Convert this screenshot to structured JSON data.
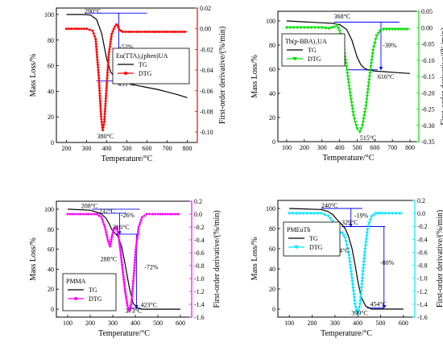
{
  "chart_data": [
    {
      "type": "line",
      "legend": [
        {
          "name": "TG",
          "color": "#000000",
          "marker": "none"
        },
        {
          "name": "DTG",
          "color": "#ff0000",
          "marker": "dot"
        }
      ],
      "legend_title": "Eu(TTA)₃(phen)UA",
      "xlabel": "Temperature/°C",
      "ylabel_left": "Mass Loss/%",
      "ylabel_right": "First-order derivative/(%/min)",
      "xlim": [
        150,
        850
      ],
      "ylim_left": [
        0,
        105
      ],
      "ylim_right": [
        -0.11,
        0.02
      ],
      "xticks": [
        "200",
        "300",
        "400",
        "500",
        "600",
        "700",
        "800"
      ],
      "yticks_left": [
        "0",
        "20",
        "40",
        "60",
        "80",
        "100"
      ],
      "yticks_right": [
        "0.02",
        "0.00",
        "-0.02",
        "-0.04",
        "-0.06",
        "-0.08",
        "-0.10"
      ],
      "tg": {
        "x": [
          200,
          280,
          320,
          350,
          375,
          400,
          420,
          440,
          460,
          500,
          550,
          600,
          650,
          700,
          750,
          800
        ],
        "y": [
          100,
          100,
          99.5,
          96,
          85,
          65,
          55,
          51,
          49,
          46.5,
          44.5,
          43,
          41.5,
          39.5,
          37.5,
          35
        ]
      },
      "dtg": {
        "x": [
          200,
          300,
          330,
          345,
          360,
          372,
          380,
          388,
          398,
          410,
          425,
          440,
          448,
          455,
          462,
          480,
          520,
          560,
          600,
          650,
          700,
          750,
          800
        ],
        "y": [
          0,
          0,
          -0.002,
          -0.01,
          -0.045,
          -0.085,
          -0.098,
          -0.09,
          -0.06,
          -0.025,
          -0.005,
          0.002,
          0.004,
          0.003,
          -0.001,
          -0.003,
          -0.003,
          -0.003,
          -0.003,
          -0.003,
          -0.003,
          -0.003,
          -0.003
        ]
      },
      "annotations": [
        {
          "text": "290°C",
          "x": 290,
          "y": 101,
          "axis": "left"
        },
        {
          "text": "-52%",
          "x": 463,
          "y": 73,
          "axis": "left"
        },
        {
          "text": "455°C",
          "x": 455,
          "y": 44,
          "axis": "left"
        },
        {
          "text": "380°C",
          "x": 352,
          "y": -0.106,
          "axis": "right"
        }
      ],
      "guides": [
        {
          "x1": 290,
          "y1": 101,
          "x2": 600,
          "y2": 101,
          "axis": "left"
        },
        {
          "x1": 348,
          "y1": 48,
          "x2": 520,
          "y2": 48,
          "axis": "left"
        },
        {
          "x1": 460,
          "y1": 101,
          "x2": 460,
          "y2": 48,
          "axis": "left",
          "arrow": true
        }
      ]
    },
    {
      "type": "line",
      "legend": [
        {
          "name": "TG",
          "color": "#000000",
          "marker": "none"
        },
        {
          "name": "DTG",
          "color": "#00e000",
          "marker": "triangle-down"
        }
      ],
      "legend_title": "Tb(p-BBA)₃UA",
      "xlabel": "Temperature/°C",
      "ylabel_left": "Mass Loss/%",
      "ylabel_right": "First-order derivative/(%/min)",
      "xlim": [
        50,
        850
      ],
      "ylim_left": [
        0,
        108
      ],
      "ylim_right": [
        -0.35,
        0.05
      ],
      "xticks": [
        "100",
        "200",
        "300",
        "400",
        "500",
        "600",
        "700",
        "800"
      ],
      "yticks_left": [
        "0",
        "20",
        "40",
        "60",
        "80",
        "100"
      ],
      "yticks_right": [
        "0.05",
        "0.00",
        "-0.05",
        "-0.10",
        "-0.15",
        "-0.20",
        "-0.25",
        "-0.30",
        "-0.35"
      ],
      "tg": {
        "x": [
          100,
          300,
          360,
          400,
          440,
          470,
          500,
          520,
          540,
          560,
          600,
          650,
          700,
          800
        ],
        "y": [
          100,
          98.5,
          98,
          97,
          93,
          84,
          70,
          64,
          61,
          59.5,
          58.5,
          58,
          57.5,
          56.5
        ]
      },
      "dtg": {
        "x": [
          100,
          300,
          340,
          370,
          385,
          400,
          420,
          440,
          460,
          480,
          500,
          515,
          530,
          550,
          570,
          590,
          610,
          630,
          650,
          700,
          750,
          800
        ],
        "y": [
          0,
          0,
          -0.003,
          0.002,
          0.008,
          -0.01,
          -0.05,
          -0.12,
          -0.2,
          -0.27,
          -0.31,
          -0.32,
          -0.3,
          -0.24,
          -0.15,
          -0.07,
          -0.025,
          -0.01,
          -0.005,
          -0.005,
          -0.005,
          -0.005
        ]
      },
      "annotations": [
        {
          "text": "368°C",
          "x": 368,
          "y": 102,
          "axis": "left"
        },
        {
          "text": "-39%",
          "x": 645,
          "y": 78,
          "axis": "left"
        },
        {
          "text": "616°C",
          "x": 616,
          "y": 52,
          "axis": "left"
        },
        {
          "text": "515°C",
          "x": 515,
          "y": -0.345,
          "axis": "right"
        }
      ],
      "guides": [
        {
          "x1": 368,
          "y1": 99,
          "x2": 740,
          "y2": 99,
          "axis": "left"
        },
        {
          "x1": 450,
          "y1": 59.5,
          "x2": 616,
          "y2": 59.5,
          "axis": "left"
        },
        {
          "x1": 635,
          "y1": 99,
          "x2": 635,
          "y2": 59.5,
          "axis": "left",
          "arrow": true
        }
      ]
    },
    {
      "type": "line",
      "legend": [
        {
          "name": "TG",
          "color": "#000000",
          "marker": "none"
        },
        {
          "name": "DTG",
          "color": "#ff00ff",
          "marker": "dot"
        }
      ],
      "legend_title": "PMMA",
      "xlabel": "Temperature/°C",
      "ylabel_left": "Mass Loss/%",
      "ylabel_right": "First-order derivative/(%/min)",
      "xlim": [
        50,
        650
      ],
      "ylim_left": [
        -8,
        108
      ],
      "ylim_right": [
        -1.6,
        0.2
      ],
      "xticks": [
        "100",
        "200",
        "300",
        "400",
        "500",
        "600"
      ],
      "yticks_left": [
        "0",
        "20",
        "40",
        "60",
        "80",
        "100"
      ],
      "yticks_right": [
        "0.2",
        "0.0",
        "-0.2",
        "-0.4",
        "-0.6",
        "-0.8",
        "-1.0",
        "-1.2",
        "-1.4",
        "-1.6"
      ],
      "tg": {
        "x": [
          100,
          200,
          230,
          250,
          270,
          285,
          295,
          305,
          315,
          325,
          340,
          355,
          365,
          375,
          390,
          410,
          430,
          600
        ],
        "y": [
          100,
          99,
          97,
          95,
          91,
          85,
          80,
          77,
          75,
          72,
          62,
          45,
          32,
          20,
          6,
          1,
          0,
          0
        ]
      },
      "dtg": {
        "x": [
          100,
          230,
          250,
          265,
          278,
          288,
          298,
          306,
          316,
          325,
          335,
          345,
          355,
          365,
          373,
          382,
          392,
          402,
          415,
          430,
          450,
          500,
          600
        ],
        "y": [
          0,
          0,
          -0.05,
          -0.2,
          -0.4,
          -0.5,
          -0.32,
          -0.22,
          -0.2,
          -0.32,
          -0.6,
          -0.9,
          -1.2,
          -1.42,
          -1.5,
          -1.4,
          -1.0,
          -0.55,
          -0.2,
          -0.05,
          0,
          0,
          0
        ]
      },
      "annotations": [
        {
          "text": "208°C",
          "x": 160,
          "y": 101,
          "axis": "left"
        },
        {
          "text": "237°C",
          "x": 237,
          "y": 96,
          "axis": "left"
        },
        {
          "text": "316°C",
          "x": 300,
          "y": 80,
          "axis": "left"
        },
        {
          "text": "-26%",
          "x": 335,
          "y": 92,
          "axis": "left"
        },
        {
          "text": "288°C",
          "x": 245,
          "y": 48,
          "axis": "left"
        },
        {
          "text": "-72%",
          "x": 440,
          "y": 40,
          "axis": "left"
        },
        {
          "text": "423°C",
          "x": 423,
          "y": 2,
          "axis": "left"
        },
        {
          "text": "373°C",
          "x": 355,
          "y": -4,
          "axis": "left"
        }
      ],
      "guides": [
        {
          "x1": 208,
          "y1": 100,
          "x2": 420,
          "y2": 100,
          "axis": "left"
        },
        {
          "x1": 237,
          "y1": 96,
          "x2": 360,
          "y2": 96,
          "axis": "left"
        },
        {
          "x1": 316,
          "y1": 75,
          "x2": 420,
          "y2": 75,
          "axis": "left"
        },
        {
          "x1": 330,
          "y1": 96,
          "x2": 330,
          "y2": 75,
          "axis": "left",
          "arrow": true
        },
        {
          "x1": 405,
          "y1": 75,
          "x2": 405,
          "y2": 1,
          "axis": "left",
          "arrow": true
        },
        {
          "x1": 380,
          "y1": 1,
          "x2": 423,
          "y2": 1,
          "axis": "left"
        }
      ]
    },
    {
      "type": "line",
      "legend": [
        {
          "name": "TG",
          "color": "#000000",
          "marker": "none"
        },
        {
          "name": "DTG",
          "color": "#00e5ff",
          "marker": "triangle-down"
        }
      ],
      "legend_title": "PMEuTb",
      "xlabel": "Temperature/°C",
      "ylabel_left": "Mass Loss/%",
      "ylabel_right": "First-order derivative/(%/min)",
      "xlim": [
        50,
        650
      ],
      "ylim_left": [
        -8,
        108
      ],
      "ylim_right": [
        -1.6,
        0.2
      ],
      "xticks": [
        "100",
        "200",
        "300",
        "400",
        "500",
        "600"
      ],
      "yticks_left": [
        "0",
        "20",
        "40",
        "60",
        "80",
        "100"
      ],
      "yticks_right": [
        "0.2",
        "0.0",
        "-0.2",
        "-0.4",
        "-0.6",
        "-0.8",
        "-1.0",
        "-1.2",
        "-1.4",
        "-1.6"
      ],
      "tg": {
        "x": [
          100,
          240,
          270,
          290,
          305,
          318,
          330,
          345,
          360,
          375,
          390,
          400,
          415,
          435,
          460,
          600
        ],
        "y": [
          100,
          99,
          97,
          94,
          90,
          87,
          84,
          80,
          72,
          60,
          42,
          28,
          12,
          3,
          0,
          0
        ]
      },
      "dtg": {
        "x": [
          100,
          240,
          270,
          290,
          305,
          314,
          322,
          332,
          345,
          360,
          375,
          388,
          399,
          410,
          420,
          432,
          445,
          460,
          480,
          520,
          600
        ],
        "y": [
          0,
          0,
          -0.04,
          -0.12,
          -0.28,
          -0.34,
          -0.3,
          -0.3,
          -0.38,
          -0.6,
          -1.0,
          -1.4,
          -1.55,
          -1.4,
          -1.0,
          -0.55,
          -0.2,
          -0.05,
          0,
          0,
          0
        ]
      },
      "annotations": [
        {
          "text": "240°C",
          "x": 240,
          "y": 101,
          "axis": "left"
        },
        {
          "text": "-19%",
          "x": 385,
          "y": 91,
          "axis": "left"
        },
        {
          "text": "329°C",
          "x": 329,
          "y": 84,
          "axis": "left"
        },
        {
          "text": "314°C",
          "x": 290,
          "y": 56,
          "axis": "left"
        },
        {
          "text": "-80%",
          "x": 498,
          "y": 44,
          "axis": "left"
        },
        {
          "text": "454°C",
          "x": 454,
          "y": 3,
          "axis": "left"
        },
        {
          "text": "399°C",
          "x": 372,
          "y": -6,
          "axis": "left"
        }
      ],
      "guides": [
        {
          "x1": 240,
          "y1": 100,
          "x2": 420,
          "y2": 100,
          "axis": "left"
        },
        {
          "x1": 329,
          "y1": 82,
          "x2": 520,
          "y2": 82,
          "axis": "left"
        },
        {
          "x1": 370,
          "y1": 100,
          "x2": 370,
          "y2": 82,
          "axis": "left",
          "arrow": true
        },
        {
          "x1": 515,
          "y1": 82,
          "x2": 515,
          "y2": 1,
          "axis": "left",
          "arrow": true
        },
        {
          "x1": 440,
          "y1": 1,
          "x2": 515,
          "y2": 1,
          "axis": "left"
        }
      ]
    }
  ]
}
